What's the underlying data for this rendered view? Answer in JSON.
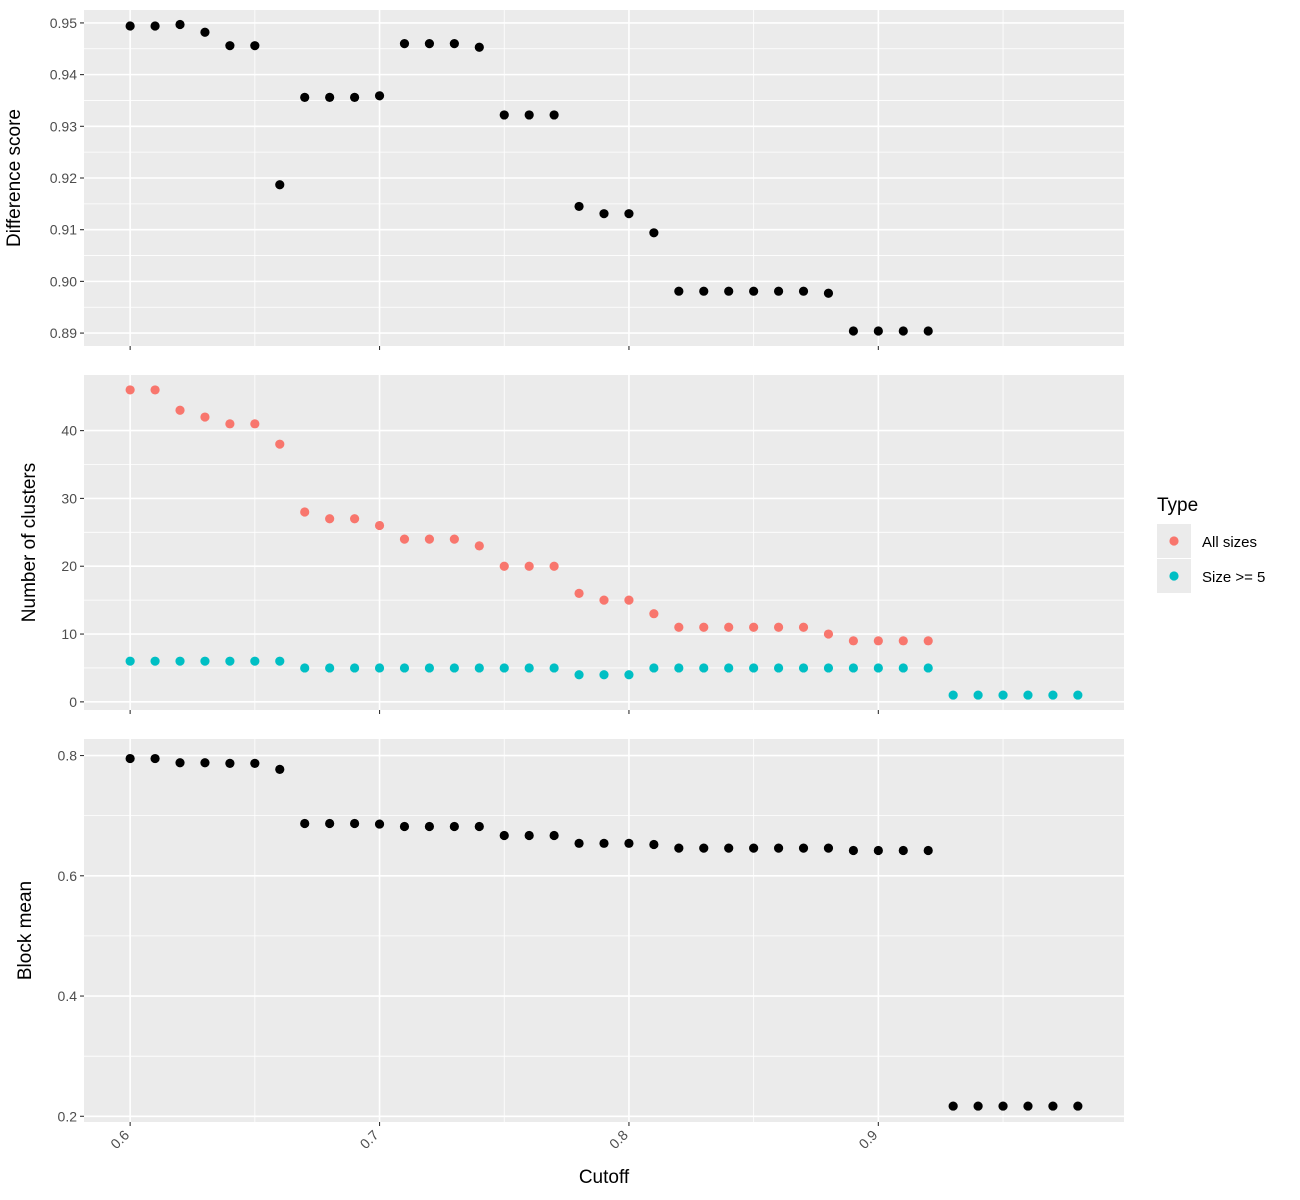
{
  "chart_data": [
    {
      "type": "scatter",
      "ylabel": "Difference score",
      "ylim": [
        0.8875,
        0.9525
      ],
      "yticks": [
        "0.89",
        "0.90",
        "0.91",
        "0.92",
        "0.93",
        "0.94",
        "0.95"
      ],
      "grid": true,
      "series": [
        {
          "color": "#000000",
          "x": [
            0.6,
            0.61,
            0.62,
            0.63,
            0.64,
            0.65,
            0.66,
            0.67,
            0.68,
            0.69,
            0.7,
            0.71,
            0.72,
            0.73,
            0.74,
            0.75,
            0.76,
            0.77,
            0.78,
            0.79,
            0.8,
            0.81,
            0.82,
            0.83,
            0.84,
            0.85,
            0.86,
            0.87,
            0.88,
            0.89,
            0.9,
            0.91,
            0.92
          ],
          "y": [
            0.9494,
            0.9494,
            0.9497,
            0.9482,
            0.9456,
            0.9456,
            0.9187,
            0.9356,
            0.9356,
            0.9356,
            0.9359,
            0.946,
            0.946,
            0.946,
            0.9453,
            0.9322,
            0.9322,
            0.9322,
            0.9145,
            0.9131,
            0.9131,
            0.9094,
            0.8981,
            0.8981,
            0.8981,
            0.8981,
            0.8981,
            0.8981,
            0.8977,
            0.8904,
            0.8904,
            0.8904,
            0.8904
          ]
        }
      ]
    },
    {
      "type": "scatter",
      "ylabel": "Number of clusters",
      "ylim": [
        -1.2,
        48.2
      ],
      "yticks": [
        "0",
        "10",
        "20",
        "30",
        "40"
      ],
      "grid": true,
      "legend": {
        "title": "Type",
        "position": "right"
      },
      "series": [
        {
          "name": "All sizes",
          "color": "#F8766D",
          "x": [
            0.6,
            0.61,
            0.62,
            0.63,
            0.64,
            0.65,
            0.66,
            0.67,
            0.68,
            0.69,
            0.7,
            0.71,
            0.72,
            0.73,
            0.74,
            0.75,
            0.76,
            0.77,
            0.78,
            0.79,
            0.8,
            0.81,
            0.82,
            0.83,
            0.84,
            0.85,
            0.86,
            0.87,
            0.88,
            0.89,
            0.9,
            0.91,
            0.92
          ],
          "y": [
            46,
            46,
            43,
            42,
            41,
            41,
            38,
            28,
            27,
            27,
            26,
            24,
            24,
            24,
            23,
            20,
            20,
            20,
            16,
            15,
            15,
            13,
            11,
            11,
            11,
            11,
            11,
            11,
            10,
            9,
            9,
            9,
            9
          ]
        },
        {
          "name": "Size >= 5",
          "color": "#00BFC4",
          "x": [
            0.6,
            0.61,
            0.62,
            0.63,
            0.64,
            0.65,
            0.66,
            0.67,
            0.68,
            0.69,
            0.7,
            0.71,
            0.72,
            0.73,
            0.74,
            0.75,
            0.76,
            0.77,
            0.78,
            0.79,
            0.8,
            0.81,
            0.82,
            0.83,
            0.84,
            0.85,
            0.86,
            0.87,
            0.88,
            0.89,
            0.9,
            0.91,
            0.92,
            0.93,
            0.94,
            0.95,
            0.96,
            0.97,
            0.98
          ],
          "y": [
            6,
            6,
            6,
            6,
            6,
            6,
            6,
            5,
            5,
            5,
            5,
            5,
            5,
            5,
            5,
            5,
            5,
            5,
            4,
            4,
            4,
            5,
            5,
            5,
            5,
            5,
            5,
            5,
            5,
            5,
            5,
            5,
            5,
            1,
            1,
            1,
            1,
            1,
            1
          ]
        }
      ]
    },
    {
      "type": "scatter",
      "ylabel": "Block mean",
      "xlabel": "Cutoff",
      "ylim": [
        0.1905,
        0.8275
      ],
      "yticks": [
        "0.2",
        "0.4",
        "0.6",
        "0.8"
      ],
      "grid": true,
      "series": [
        {
          "color": "#000000",
          "x": [
            0.6,
            0.61,
            0.62,
            0.63,
            0.64,
            0.65,
            0.66,
            0.67,
            0.68,
            0.69,
            0.7,
            0.71,
            0.72,
            0.73,
            0.74,
            0.75,
            0.76,
            0.77,
            0.78,
            0.79,
            0.8,
            0.81,
            0.82,
            0.83,
            0.84,
            0.85,
            0.86,
            0.87,
            0.88,
            0.89,
            0.9,
            0.91,
            0.92,
            0.93,
            0.94,
            0.95,
            0.96,
            0.97,
            0.98
          ],
          "y": [
            0.795,
            0.795,
            0.788,
            0.788,
            0.787,
            0.787,
            0.777,
            0.687,
            0.687,
            0.687,
            0.686,
            0.682,
            0.682,
            0.682,
            0.682,
            0.667,
            0.667,
            0.667,
            0.654,
            0.654,
            0.654,
            0.652,
            0.646,
            0.646,
            0.646,
            0.646,
            0.646,
            0.646,
            0.646,
            0.642,
            0.642,
            0.642,
            0.642,
            0.217,
            0.217,
            0.217,
            0.217,
            0.217,
            0.217
          ]
        }
      ]
    }
  ],
  "x_axis": {
    "xlim": [
      0.5815,
      0.9985
    ],
    "ticks": [
      "0.6",
      "0.7",
      "0.8",
      "0.9"
    ],
    "tick_values": [
      0.6,
      0.7,
      0.8,
      0.9
    ]
  }
}
